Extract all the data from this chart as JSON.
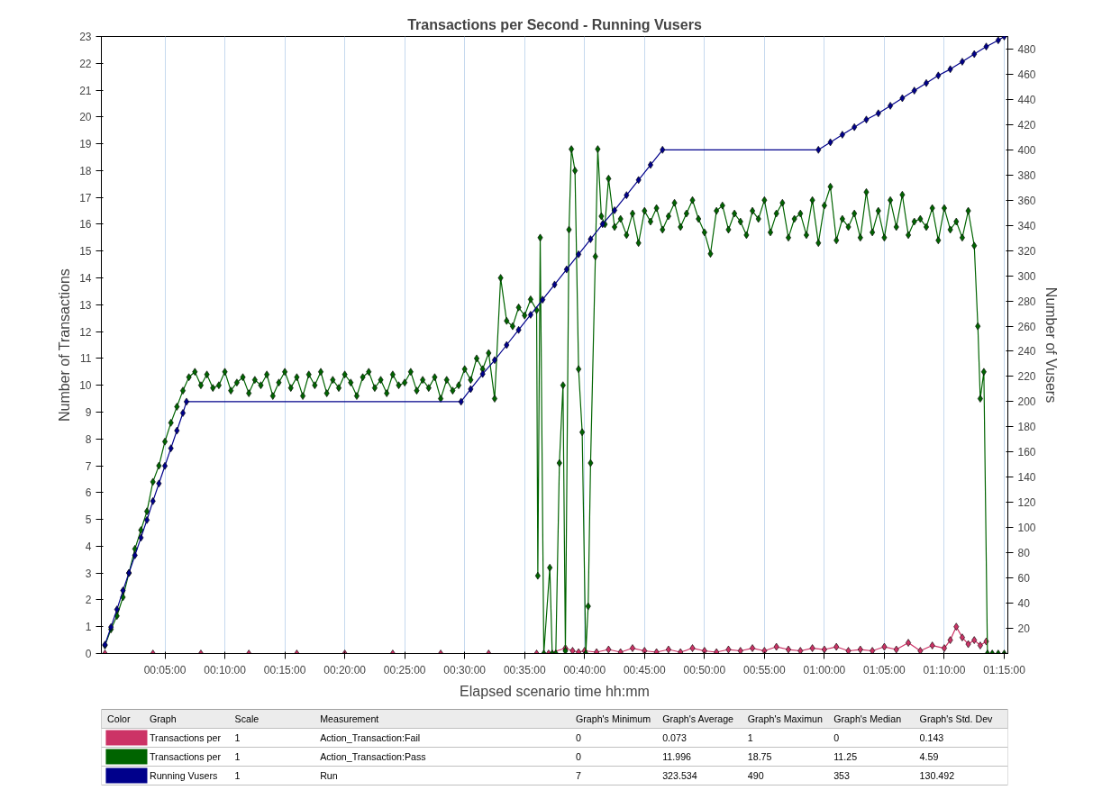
{
  "chart_data": {
    "type": "line",
    "title": "Transactions per Second - Running Vusers",
    "xlabel": "Elapsed scenario time hh:mm",
    "ylabel": "Number of Transactions",
    "y2label": "Number of Vusers",
    "xlim": [
      -0.3,
      75.3
    ],
    "xticks": [
      {
        "value": 5,
        "label": "00:05:00"
      },
      {
        "value": 10,
        "label": "00:10:00"
      },
      {
        "value": 15,
        "label": "00:15:00"
      },
      {
        "value": 20,
        "label": "00:20:00"
      },
      {
        "value": 25,
        "label": "00:25:00"
      },
      {
        "value": 30,
        "label": "00:30:00"
      },
      {
        "value": 35,
        "label": "00:35:00"
      },
      {
        "value": 40,
        "label": "00:40:00"
      },
      {
        "value": 45,
        "label": "00:45:00"
      },
      {
        "value": 50,
        "label": "00:50:00"
      },
      {
        "value": 55,
        "label": "00:55:00"
      },
      {
        "value": 60,
        "label": "01:00:00"
      },
      {
        "value": 65,
        "label": "01:05:00"
      },
      {
        "value": 70,
        "label": "01:10:00"
      },
      {
        "value": 75,
        "label": "01:15:00"
      }
    ],
    "ylim": [
      0,
      23
    ],
    "yticks": [
      0,
      1,
      2,
      3,
      4,
      5,
      6,
      7,
      8,
      9,
      10,
      11,
      12,
      13,
      14,
      15,
      16,
      17,
      18,
      19,
      20,
      21,
      22,
      23
    ],
    "y2lim": [
      0,
      490
    ],
    "y2ticks": [
      20,
      40,
      60,
      80,
      100,
      120,
      140,
      160,
      180,
      200,
      220,
      240,
      260,
      280,
      300,
      320,
      340,
      360,
      380,
      400,
      420,
      440,
      460,
      480
    ],
    "grid": "x",
    "legend": "bottom",
    "marker": "diamond",
    "line_style": "solid",
    "series": [
      {
        "name": "Transactions per",
        "color": "#cc3366",
        "x": [
          0,
          4,
          8,
          12,
          16,
          20,
          24,
          28,
          32,
          36,
          37,
          38.4,
          39,
          39.5,
          40,
          41,
          42,
          43,
          44,
          45,
          46,
          47,
          48,
          49,
          50,
          51,
          52,
          53,
          54,
          55,
          56,
          57,
          58,
          59,
          60,
          61,
          62,
          63,
          64,
          65,
          66,
          67,
          68,
          69,
          70,
          70.5,
          71,
          71.5,
          72,
          72.5,
          73,
          73.5
        ],
        "values": [
          0,
          0,
          0,
          0,
          0,
          0,
          0,
          0,
          0,
          0,
          0,
          0.2,
          0.1,
          0.05,
          0.1,
          0.05,
          0.15,
          0.05,
          0.2,
          0.1,
          0.05,
          0.15,
          0.05,
          0.2,
          0.1,
          0.05,
          0.15,
          0.1,
          0.2,
          0.1,
          0.25,
          0.15,
          0.1,
          0.2,
          0.15,
          0.25,
          0.1,
          0.15,
          0.1,
          0.25,
          0.15,
          0.4,
          0.1,
          0.3,
          0.2,
          0.5,
          1.0,
          0.6,
          0.35,
          0.5,
          0.3,
          0.45
        ]
      },
      {
        "name": "Transactions per",
        "color": "#006400",
        "x": [
          0,
          0.5,
          1,
          1.5,
          2,
          2.5,
          3,
          3.5,
          4,
          4.5,
          5,
          5.5,
          6,
          6.5,
          7,
          7.5,
          8,
          8.5,
          9,
          9.5,
          10,
          10.5,
          11,
          11.5,
          12,
          12.5,
          13,
          13.5,
          14,
          14.5,
          15,
          15.5,
          16,
          16.5,
          17,
          17.5,
          18,
          18.5,
          19,
          19.5,
          20,
          20.5,
          21,
          21.5,
          22,
          22.5,
          23,
          23.5,
          24,
          24.5,
          25,
          25.5,
          26,
          26.5,
          27,
          27.5,
          28,
          28.5,
          29,
          29.5,
          30,
          30.5,
          31,
          31.5,
          32,
          32.5,
          33,
          33.5,
          34,
          34.5,
          35,
          35.5,
          36,
          36.1,
          36.3,
          36.6,
          37.1,
          37.3,
          37.6,
          37.9,
          38.2,
          38.4,
          38.7,
          38.9,
          39.2,
          39.5,
          39.8,
          40.1,
          40.3,
          40.5,
          40.9,
          41.1,
          41.4,
          41.7,
          42,
          42.5,
          43,
          43.5,
          44,
          44.5,
          45,
          45.5,
          46,
          46.5,
          47,
          47.5,
          48,
          48.5,
          49,
          49.5,
          50,
          50.5,
          51,
          51.5,
          52,
          52.5,
          53,
          53.5,
          54,
          54.5,
          55,
          55.5,
          56,
          56.5,
          57,
          57.5,
          58,
          58.5,
          59,
          59.5,
          60,
          60.5,
          61,
          61.5,
          62,
          62.5,
          63,
          63.5,
          64,
          64.5,
          65,
          65.5,
          66,
          66.5,
          67,
          67.5,
          68,
          68.5,
          69,
          69.5,
          70,
          70.5,
          71,
          71.5,
          72,
          72.5,
          72.8,
          73,
          73.3,
          73.6,
          74,
          74.5,
          75
        ],
        "values": [
          0.3,
          0.9,
          1.4,
          2.1,
          3.0,
          3.9,
          4.6,
          5.3,
          6.4,
          7.0,
          7.9,
          8.6,
          9.2,
          9.8,
          10.3,
          10.5,
          10.0,
          10.4,
          9.9,
          10.0,
          10.5,
          9.8,
          10.1,
          10.3,
          9.7,
          10.2,
          10.0,
          10.4,
          9.6,
          10.1,
          10.5,
          9.9,
          10.3,
          9.6,
          10.4,
          10.0,
          10.5,
          9.7,
          10.2,
          9.9,
          10.4,
          10.1,
          9.6,
          10.3,
          10.5,
          9.9,
          10.2,
          9.7,
          10.4,
          10.0,
          10.1,
          10.5,
          9.8,
          10.2,
          9.9,
          10.3,
          9.5,
          10.2,
          9.8,
          10.0,
          10.6,
          10.2,
          11.0,
          10.6,
          11.2,
          9.5,
          14.0,
          12.4,
          12.2,
          12.9,
          12.6,
          13.2,
          12.8,
          2.9,
          15.5,
          0,
          3.2,
          0,
          0,
          7.1,
          10.0,
          0.1,
          15.8,
          18.8,
          18.0,
          10.6,
          8.25,
          0,
          1.76,
          7.1,
          14.8,
          18.8,
          16.3,
          16.0,
          17.7,
          15.9,
          16.2,
          15.6,
          16.4,
          15.3,
          16.5,
          16.1,
          16.6,
          15.8,
          16.3,
          16.8,
          15.9,
          16.4,
          16.9,
          16.2,
          15.7,
          14.9,
          16.5,
          16.7,
          15.8,
          16.4,
          16.1,
          15.6,
          16.5,
          16.2,
          16.9,
          15.7,
          16.4,
          16.8,
          15.5,
          16.2,
          16.4,
          15.6,
          16.9,
          15.3,
          16.7,
          17.4,
          15.4,
          16.2,
          15.9,
          16.4,
          15.5,
          17.2,
          15.7,
          16.5,
          15.5,
          16.9,
          15.9,
          17.1,
          15.6,
          16.1,
          16.2,
          15.9,
          16.6,
          15.4,
          16.6,
          15.8,
          16.1,
          15.5,
          16.5,
          15.2,
          12.2,
          9.5,
          10.5,
          0,
          0,
          0,
          0
        ]
      },
      {
        "name": "Running Vusers",
        "color": "#00008b",
        "axis": "y2",
        "x": [
          0,
          0.5,
          1,
          1.5,
          2,
          2.5,
          3,
          3.5,
          4,
          4.5,
          5,
          5.5,
          6,
          6.5,
          6.8,
          29.7,
          30.5,
          31.5,
          32.5,
          33.5,
          34.5,
          35.5,
          36.5,
          37.5,
          38.5,
          39.5,
          40.5,
          41.5,
          42.5,
          43.5,
          44.5,
          45.5,
          46.5,
          59.5,
          60.5,
          61.5,
          62.5,
          63.5,
          64.5,
          65.5,
          66.5,
          67.5,
          68.5,
          69.5,
          70.5,
          71.5,
          72.5,
          73.5,
          74.5,
          75
        ],
        "values": [
          7,
          21,
          35,
          50,
          64,
          78,
          92,
          106,
          121,
          135,
          149,
          163,
          177,
          191,
          200,
          200,
          210,
          222,
          233,
          245,
          257,
          269,
          281,
          293,
          305,
          317,
          329,
          341,
          352,
          364,
          376,
          388,
          400,
          400,
          406,
          412,
          418,
          424,
          429,
          435,
          441,
          447,
          453,
          459,
          464,
          470,
          476,
          482,
          487,
          490
        ]
      }
    ],
    "annotations": [
      "Color",
      "Graph",
      "Scale",
      "Measurement",
      "Graph's Minimum",
      "Graph's Average",
      "Graph's Maximun",
      "Graph's Median",
      "Graph's Std. Dev",
      "1",
      "Action_Transaction:Fail",
      "0",
      "0.073",
      "1",
      "0",
      "0.143",
      "1",
      "Action_Transaction:Pass",
      "0",
      "11.996",
      "18.75",
      "11.25",
      "4.59",
      "1",
      "Run",
      "7",
      "323.534",
      "490",
      "353",
      "130.492"
    ]
  }
}
